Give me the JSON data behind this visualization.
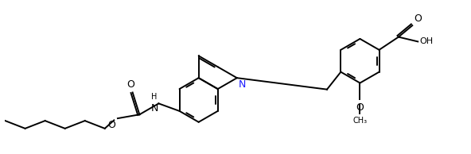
{
  "background_color": "#ffffff",
  "line_color": "#000000",
  "line_width": 1.4,
  "font_size": 8,
  "figsize": [
    5.92,
    1.94
  ],
  "dpi": 100,
  "xlim": [
    0,
    10
  ],
  "ylim": [
    0,
    3.3
  ]
}
